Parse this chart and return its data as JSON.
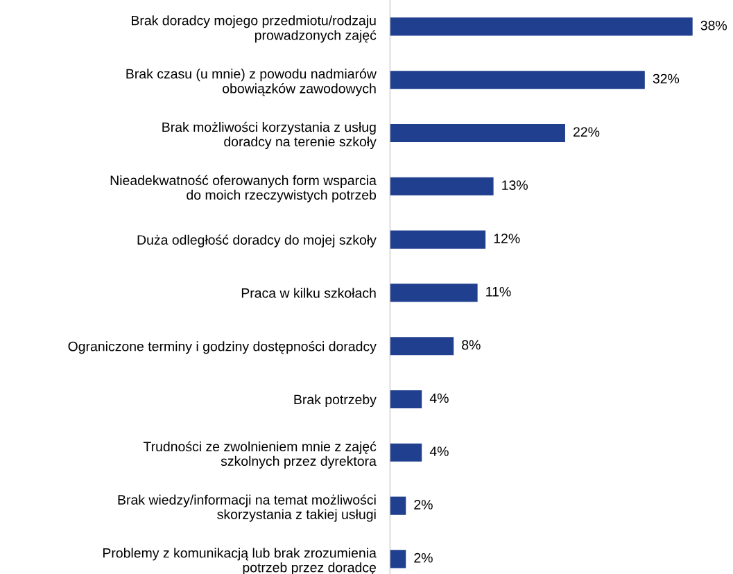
{
  "chart_data": {
    "type": "bar",
    "orientation": "horizontal",
    "categories": [
      "Brak doradcy mojego przedmiotu/rodzaju\nprowadzonych zajęć",
      "Brak czasu (u mnie) z powodu nadmiarów\nobowiązków zawodowych",
      "Brak możliwości korzystania z usług\ndoradcy na terenie szkoły",
      "Nieadekwatność oferowanych form wsparcia\ndo moich rzeczywistych potrzeb",
      "Duża odległość doradcy do mojej szkoły",
      "Praca w kilku szkołach",
      "Ograniczone terminy i godziny dostępności doradcy",
      "Brak potrzeby",
      "Trudności ze zwolnieniem mnie z zajęć\nszkolnych przez dyrektora",
      "Brak wiedzy/informacji na temat możliwości\nskorzystania z takiej usługi",
      "Problemy z komunikacją lub brak zrozumienia\npotrzeb przez doradcę"
    ],
    "values": [
      38,
      32,
      22,
      13,
      12,
      11,
      8,
      4,
      4,
      2,
      2
    ],
    "value_labels": [
      "38%",
      "32%",
      "22%",
      "13%",
      "12%",
      "11%",
      "8%",
      "4%",
      "4%",
      "2%",
      "2%"
    ],
    "color": "#203f8f"
  }
}
